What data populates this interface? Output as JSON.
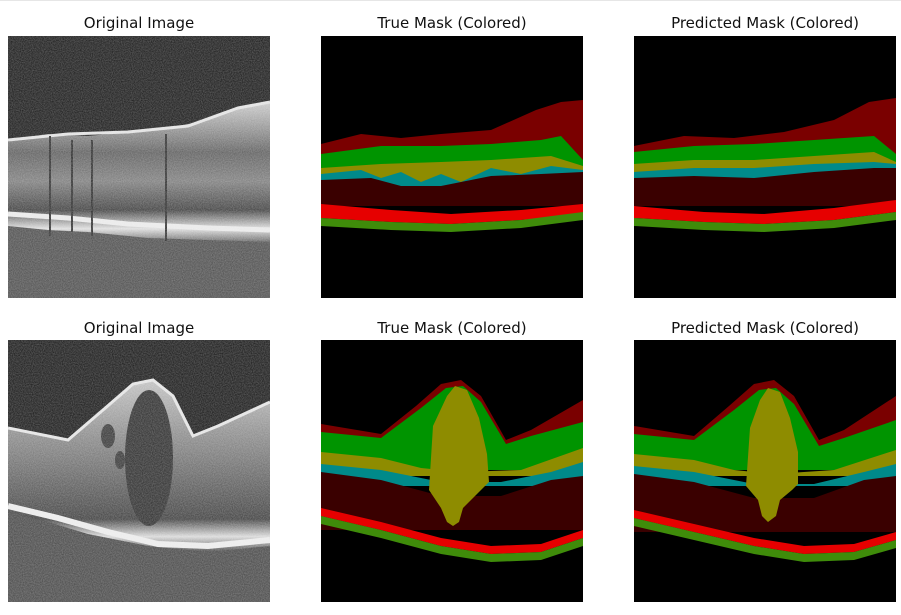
{
  "rows": [
    {
      "panels": [
        {
          "title": "Original Image"
        },
        {
          "title": "True Mask (Colored)"
        },
        {
          "title": "Predicted Mask (Colored)"
        }
      ]
    },
    {
      "panels": [
        {
          "title": "Original Image"
        },
        {
          "title": "True Mask (Colored)"
        },
        {
          "title": "Predicted Mask (Colored)"
        }
      ]
    }
  ],
  "mask_colors": {
    "background": "#000000",
    "layer_darkred": "#7a0000",
    "layer_green": "#009400",
    "layer_olive": "#8e8c00",
    "layer_cyan": "#008a8a",
    "layer_maroon": "#3a0000",
    "layer_red": "#e60000",
    "layer_lightgreen": "#3f8c0a"
  }
}
